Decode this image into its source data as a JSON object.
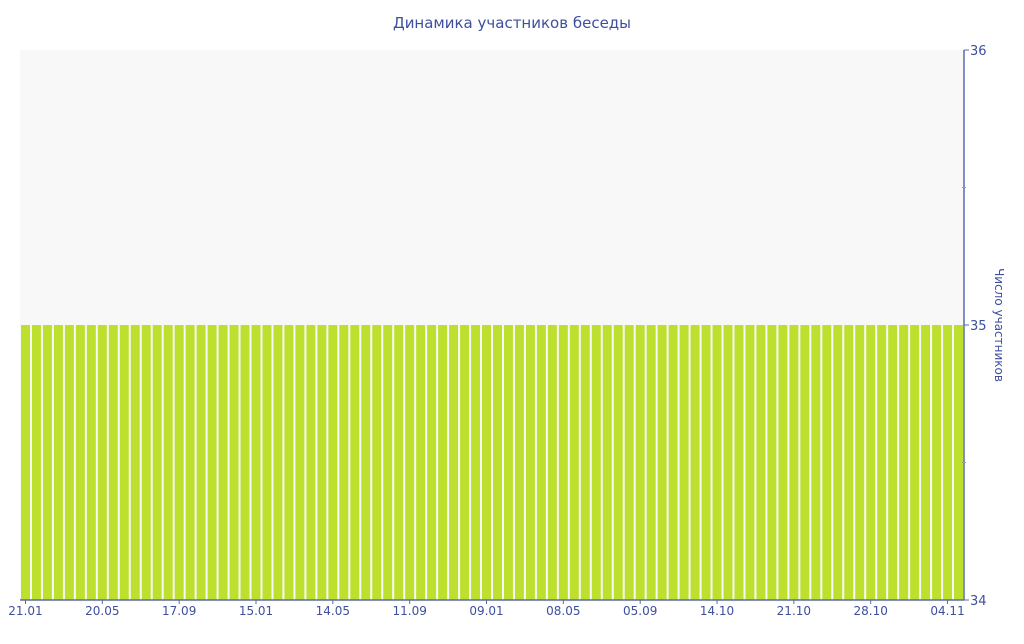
{
  "chart_data": {
    "type": "bar",
    "title": "Динамика участников беседы",
    "ylabel": "Число участников",
    "xlabel": "",
    "ylim": [
      34,
      36
    ],
    "y_ticks": [
      34,
      35,
      36
    ],
    "y_axis_side": "right",
    "grid": false,
    "x_tick_labels": [
      "21.01",
      "20.05",
      "17.09",
      "15.01",
      "14.05",
      "11.09",
      "09.01",
      "08.05",
      "05.09",
      "14.10",
      "21.10",
      "28.10",
      "04.11"
    ],
    "x_tick_every_n_bars": 7,
    "values": [
      35,
      35,
      35,
      35,
      35,
      35,
      35,
      35,
      35,
      35,
      35,
      35,
      35,
      35,
      35,
      35,
      35,
      35,
      35,
      35,
      35,
      35,
      35,
      35,
      35,
      35,
      35,
      35,
      35,
      35,
      35,
      35,
      35,
      35,
      35,
      35,
      35,
      35,
      35,
      35,
      35,
      35,
      35,
      35,
      35,
      35,
      35,
      35,
      35,
      35,
      35,
      35,
      35,
      35,
      35,
      35,
      35,
      35,
      35,
      35,
      35,
      35,
      35,
      35,
      35,
      35,
      35,
      35,
      35,
      35,
      35,
      35,
      35,
      35,
      35,
      35,
      35,
      35,
      35,
      35,
      35,
      35,
      35,
      35,
      35,
      35
    ],
    "colors": {
      "bar": "#bde02e",
      "plot_bg": "#f8f8f8",
      "axis": "#5a6aaa",
      "text": "#3d4f9f"
    }
  }
}
